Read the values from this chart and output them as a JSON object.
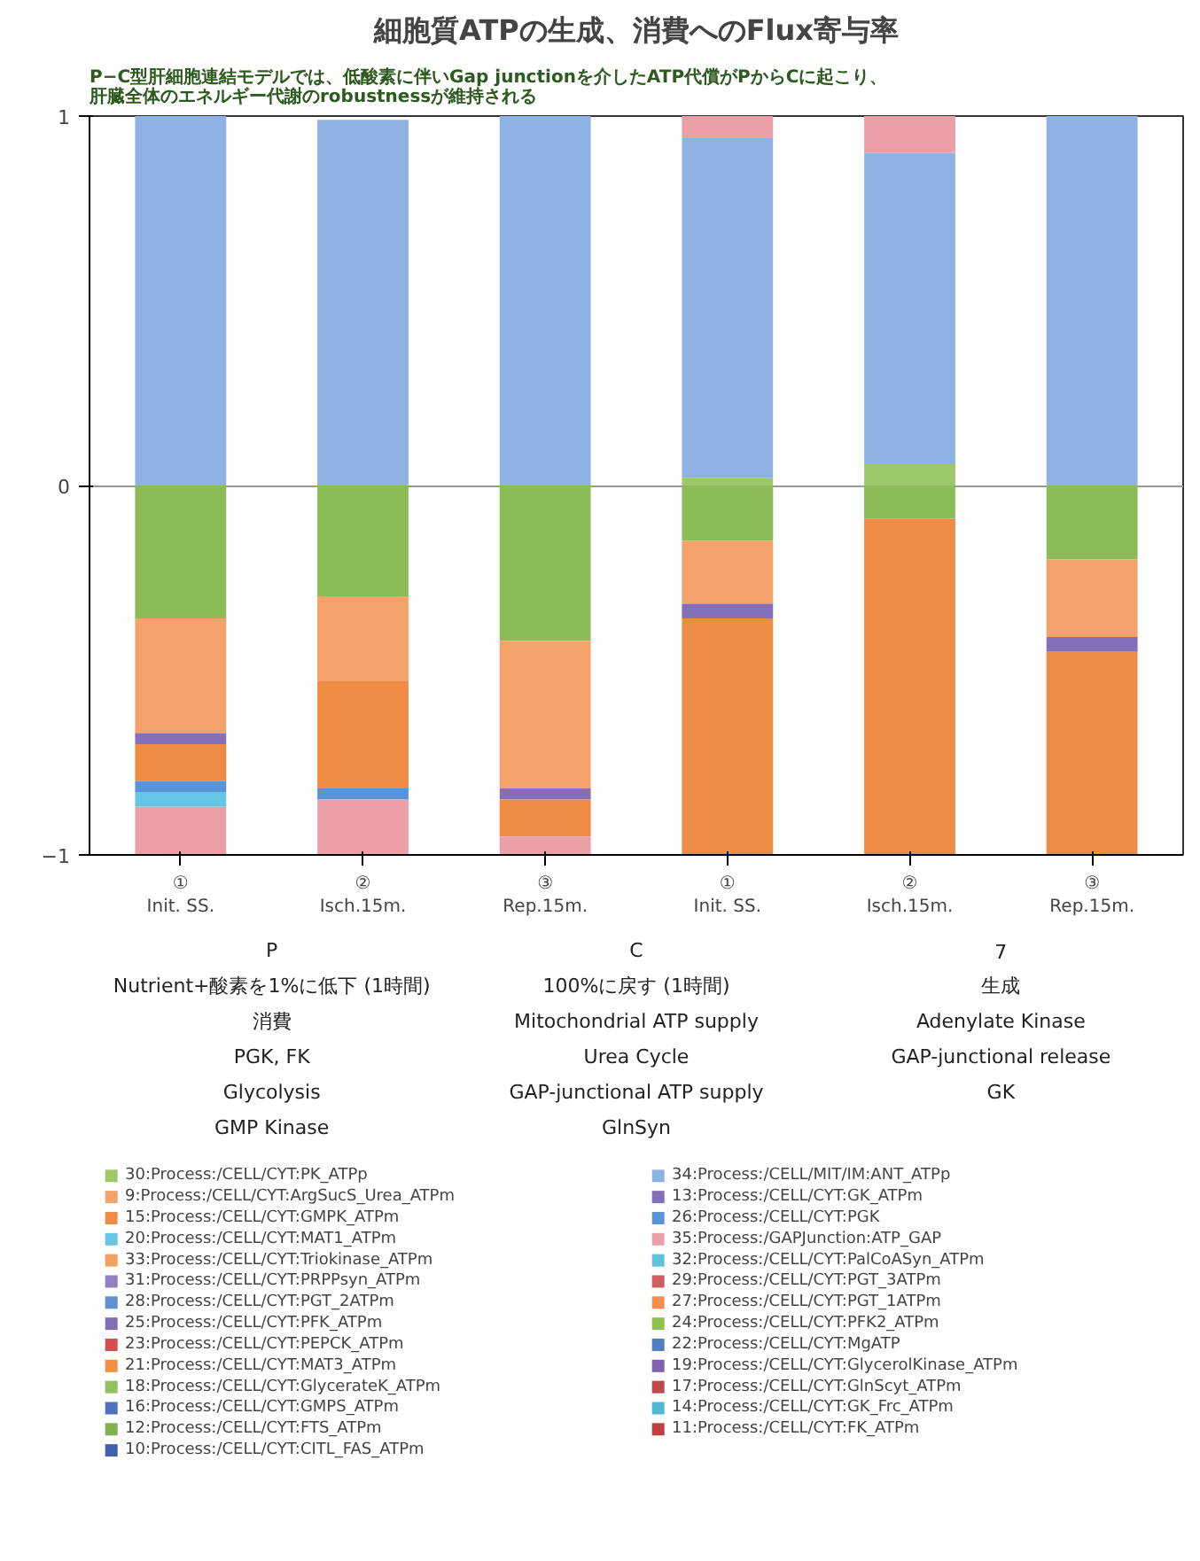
{
  "chart_data": {
    "type": "bar",
    "title": "細胞質ATPの生成、消費へのFlux寄与率",
    "subtitle": "P−C型肝細胞連結モデルでは、低酸素に伴いGap junctionを介したATP代償がPからCに起こり、肝臓全体のエネルギー代謝のrobustnessが維持される",
    "categories": [
      "①\nInit. SS.",
      "②\nIsch.15m.",
      "③\nRep.15m.",
      "①\nInit. SS.",
      "②\nIsch.15m.",
      "③\nRep.15m."
    ],
    "stacked": true,
    "ylim": [
      -1,
      1
    ],
    "yticks": [
      -1,
      0,
      1
    ],
    "grid": "y",
    "legend": "bottom",
    "series": [
      {
        "color": "#8cbc58",
        "values": [
          -0.36,
          -0.3,
          -0.42,
          -0.15,
          -0.09,
          -0.2
        ]
      },
      {
        "name": "30:Process:/CELL/CYT:PK_ATPp",
        "color": "#9cc86a",
        "values": [
          null,
          null,
          null,
          0.02,
          0.06,
          null
        ]
      },
      {
        "name": "34:Process:/CELL/MIT/IM:ANT_ATPp",
        "color": "#8fb2e4",
        "values": [
          1.0,
          0.99,
          1.0,
          0.92,
          0.84,
          1.0
        ]
      },
      {
        "name": "9:Process:/CELL/CYT:ArgSucS_Urea_ATPm",
        "color": "#f2a26a",
        "values": [
          -0.31,
          -0.23,
          -0.4,
          -0.17,
          null,
          -0.21
        ]
      },
      {
        "name": "13:Process:/CELL/CYT:GK_ATPm",
        "color": "#8470b8",
        "values": [
          -0.03,
          null,
          -0.03,
          -0.04,
          null,
          -0.04
        ]
      },
      {
        "name": "15:Process:/CELL/CYT:GMPK_ATPm",
        "color": "#ee8c46",
        "values": [
          -0.1,
          -0.29,
          -0.1,
          -0.64,
          -0.91,
          -0.55
        ]
      },
      {
        "name": "26:Process:/CELL/CYT:PGK",
        "color": "#5a94d8",
        "values": [
          -0.03,
          -0.03,
          null,
          null,
          null,
          null
        ]
      },
      {
        "name": "20:Process:/CELL/CYT:MAT1_ATPm",
        "color": "#66c6e6",
        "values": [
          -0.04,
          null,
          null,
          null,
          null,
          null
        ]
      },
      {
        "name": "35:Process:/GAPJunction:ATP_GAP",
        "color": "#eba0a8",
        "values": [
          -0.13,
          -0.15,
          -0.05,
          0.06,
          0.1,
          null
        ]
      },
      {
        "name": "33:Process:/CELL/CYT:Triokinase_ATPm",
        "color": "#f0a060",
        "values": [
          null,
          null,
          null,
          null,
          null,
          null
        ]
      },
      {
        "name": "32:Process:/CELL/CYT:PalCoASyn_ATPm",
        "color": "#60c0e0",
        "values": [
          null,
          null,
          null,
          null,
          null,
          null
        ]
      },
      {
        "name": "31:Process:/CELL/CYT:PRPPsyn_ATPm",
        "color": "#9080c0",
        "values": [
          null,
          null,
          null,
          null,
          null,
          null
        ]
      },
      {
        "name": "29:Process:/CELL/CYT:PGT_3ATPm",
        "color": "#d06060",
        "values": [
          null,
          null,
          null,
          null,
          null,
          null
        ]
      },
      {
        "name": "28:Process:/CELL/CYT:PGT_2ATPm",
        "color": "#6090d0",
        "values": [
          null,
          null,
          null,
          null,
          null,
          null
        ]
      },
      {
        "name": "27:Process:/CELL/CYT:PGT_1ATPm",
        "color": "#f09050",
        "values": [
          null,
          null,
          null,
          null,
          null,
          null
        ]
      },
      {
        "name": "25:Process:/CELL/CYT:PFK_ATPm",
        "color": "#8070b0",
        "values": [
          null,
          null,
          null,
          null,
          null,
          null
        ]
      },
      {
        "name": "24:Process:/CELL/CYT:PFK2_ATPm",
        "color": "#90c050",
        "values": [
          null,
          null,
          null,
          null,
          null,
          null
        ]
      },
      {
        "name": "23:Process:/CELL/CYT:PEPCK_ATPm",
        "color": "#d05050",
        "values": [
          null,
          null,
          null,
          null,
          null,
          null
        ]
      },
      {
        "name": "22:Process:/CELL/CYT:MgATP",
        "color": "#5080c0",
        "values": [
          null,
          null,
          null,
          null,
          null,
          null
        ]
      },
      {
        "name": "21:Process:/CELL/CYT:MAT3_ATPm",
        "color": "#f09040",
        "values": [
          null,
          null,
          null,
          null,
          null,
          null
        ]
      },
      {
        "name": "19:Process:/CELL/CYT:GlycerolKinase_ATPm",
        "color": "#8060b0",
        "values": [
          null,
          null,
          null,
          null,
          null,
          null
        ]
      },
      {
        "name": "18:Process:/CELL/CYT:GlycerateK_ATPm",
        "color": "#90c060",
        "values": [
          null,
          null,
          null,
          null,
          null,
          null
        ]
      },
      {
        "name": "17:Process:/CELL/CYT:GlnScyt_ATPm",
        "color": "#c04848",
        "values": [
          null,
          null,
          null,
          null,
          null,
          null
        ]
      },
      {
        "name": "16:Process:/CELL/CYT:GMPS_ATPm",
        "color": "#5070c0",
        "values": [
          null,
          null,
          null,
          null,
          null,
          null
        ]
      },
      {
        "name": "14:Process:/CELL/CYT:GK_Frc_ATPm",
        "color": "#50b8d0",
        "values": [
          null,
          null,
          null,
          null,
          null,
          null
        ]
      },
      {
        "name": "12:Process:/CELL/CYT:FTS_ATPm",
        "color": "#80b050",
        "values": [
          null,
          null,
          null,
          null,
          null,
          null
        ]
      },
      {
        "name": "11:Process:/CELL/CYT:FK_ATPm",
        "color": "#c04040",
        "values": [
          null,
          null,
          null,
          null,
          null,
          null
        ]
      },
      {
        "name": "10:Process:/CELL/CYT:CITL_FAS_ATPm",
        "color": "#4060b0",
        "values": [
          null,
          null,
          null,
          null,
          null,
          null
        ]
      }
    ],
    "annotations": [
      "P",
      "C",
      "7",
      "Nutrient+酸素を1%に低下 (1時間)",
      "100%に戻す (1時間)",
      "生成",
      "消費",
      "Mitochondrial ATP supply",
      "Adenylate Kinase",
      "PGK, FK",
      "Urea Cycle",
      "GAP-junctional release",
      "Glycolysis",
      "GAP-junctional ATP supply",
      "GK",
      "GMP Kinase",
      "GlnSyn"
    ]
  }
}
